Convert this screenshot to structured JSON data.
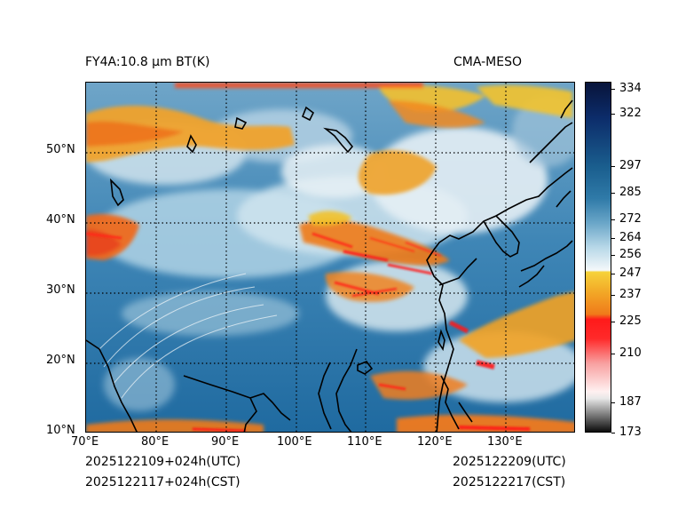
{
  "header": {
    "title_left": "FY4A:10.8 µm BT(K)",
    "title_right": "CMA-MESO"
  },
  "map": {
    "lon_labels": [
      "70°E",
      "80°E",
      "90°E",
      "100°E",
      "110°E",
      "120°E",
      "130°E"
    ],
    "lon_values": [
      70,
      80,
      90,
      100,
      110,
      120,
      130
    ],
    "lat_labels": [
      "10°N",
      "20°N",
      "30°N",
      "40°N",
      "50°N"
    ],
    "lat_values": [
      10,
      20,
      30,
      40,
      50
    ],
    "lon_range": [
      70,
      140
    ],
    "lat_range": [
      10,
      60
    ]
  },
  "colorbar": {
    "tick_labels": [
      "334",
      "322",
      "297",
      "285",
      "272",
      "264",
      "256",
      "247",
      "237",
      "225",
      "210",
      "187",
      "173"
    ],
    "tick_values": [
      334,
      322,
      297,
      285,
      272,
      264,
      256,
      247,
      237,
      225,
      210,
      187,
      173
    ],
    "units": "K",
    "range": [
      173,
      336
    ],
    "colors": {
      "top": "#08143a",
      "deep_blue": "#1a5e8e",
      "mid_blue": "#4a8fb8",
      "light_blue": "#b8d8e8",
      "white": "#f4f8fa",
      "yellow": "#f2c12a",
      "orange": "#f07a1a",
      "red": "#ff1a1a",
      "pink": "#f8a0a0",
      "light_gray": "#e8e8e8",
      "black": "#000000"
    }
  },
  "footer": {
    "init_utc": "2025122109+024h(UTC)",
    "init_cst": "2025122117+024h(CST)",
    "valid_utc": "2025122209(UTC)",
    "valid_cst": "2025122217(CST)"
  }
}
